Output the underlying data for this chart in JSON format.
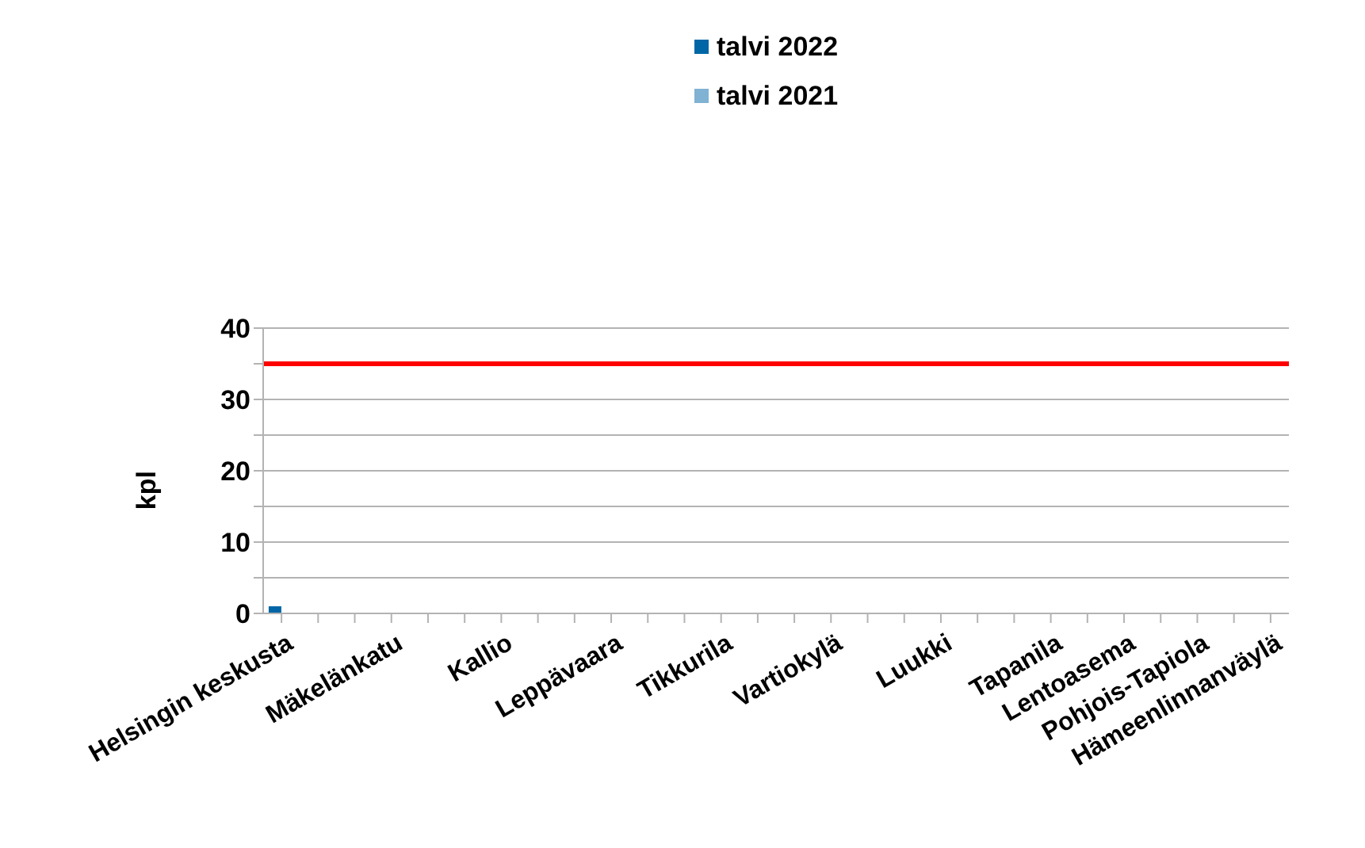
{
  "chart_data": {
    "type": "bar",
    "ylabel": "kpl",
    "categories": [
      "Helsingin keskusta",
      null,
      null,
      "Mäkelänkatu",
      null,
      null,
      "Kallio",
      null,
      null,
      "Leppävaara",
      null,
      null,
      "Tikkurila",
      null,
      null,
      "Vartiokylä",
      null,
      null,
      "Luukki",
      null,
      null,
      "Tapanila",
      null,
      "Lentoasema",
      null,
      "Pohjois-Tapiola",
      null,
      "Hämeenlinnanväylä"
    ],
    "series": [
      {
        "name": "talvi 2022",
        "color": "#0066a6",
        "values": [
          1,
          0,
          0,
          0,
          0,
          0,
          0,
          0,
          0,
          0,
          0,
          0,
          0,
          0,
          0,
          0,
          0,
          0,
          0,
          0,
          0,
          0,
          0,
          0,
          0,
          0,
          0,
          0
        ]
      },
      {
        "name": "talvi 2021",
        "color": "#7fb2d3",
        "values": [
          0,
          0,
          0,
          0,
          0,
          0,
          0,
          0,
          0,
          0,
          0,
          0,
          0,
          0,
          0,
          0,
          0,
          0,
          0,
          0,
          0,
          0,
          0,
          0,
          0,
          0,
          0,
          0
        ]
      }
    ],
    "ylim": [
      0,
      40
    ],
    "yticks": [
      0,
      {
        "value": 5,
        "label": null
      },
      10,
      {
        "value": 15,
        "label": null
      },
      20,
      {
        "value": 25,
        "label": null
      },
      30,
      {
        "value": 35,
        "label": null
      },
      40
    ],
    "ref_lines": [
      {
        "axis": "y",
        "value": 35,
        "color": "#ff0000"
      }
    ],
    "grid": "y",
    "legend": "top"
  }
}
